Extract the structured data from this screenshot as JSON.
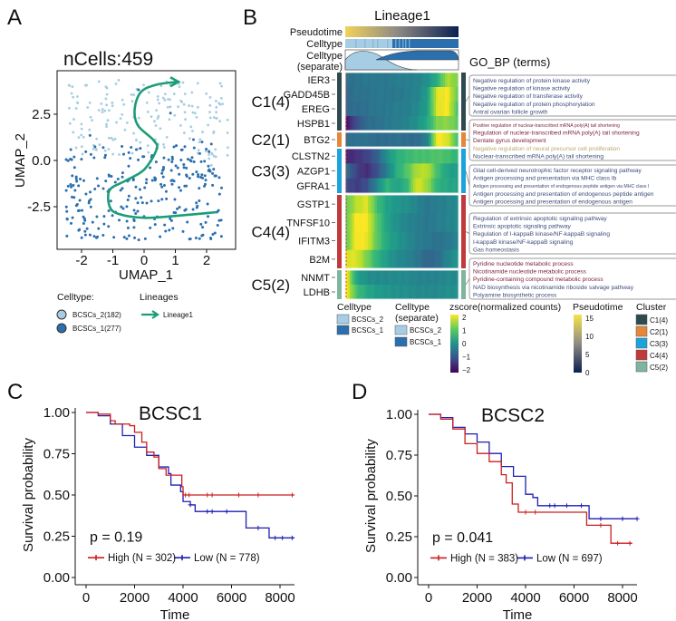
{
  "panels": {
    "a": "A",
    "b": "B",
    "c": "C",
    "d": "D"
  },
  "chart_data": [
    {
      "type": "scatter",
      "panel": "A",
      "title": "nCells:459",
      "xlabel": "UMAP_1",
      "ylabel": "UMAP_2",
      "xticks": [
        "-2",
        "-1",
        "0",
        "1",
        "2"
      ],
      "yticks": [
        "-2.5",
        "0.0",
        "2.5"
      ],
      "xlim": [
        -2.78,
        2.93
      ],
      "ylim": [
        -4.8,
        4.85
      ],
      "legend_title": "Celltype:",
      "series": [
        {
          "name": "BCSCs_2(182)",
          "count": 182,
          "color": "#a6cde3"
        },
        {
          "name": "BCSCs_1(277)",
          "count": 277,
          "color": "#2b6fae"
        }
      ],
      "lineage_legend_title": "Lineages",
      "lineage": {
        "name": "Lineage1",
        "color": "#1b9e77",
        "path": [
          [
            2.3,
            -2.8
          ],
          [
            1.0,
            -3.0
          ],
          [
            0.0,
            -3.1
          ],
          [
            -0.8,
            -2.9
          ],
          [
            -1.1,
            -2.5
          ],
          [
            -1.1,
            -1.6
          ],
          [
            -0.6,
            -1.1
          ],
          [
            0.0,
            -0.5
          ],
          [
            0.4,
            0.6
          ],
          [
            0.3,
            1.1
          ],
          [
            -0.2,
            1.9
          ],
          [
            -0.3,
            2.8
          ],
          [
            -0.1,
            3.7
          ],
          [
            0.4,
            4.1
          ],
          [
            1.1,
            4.25
          ]
        ]
      }
    },
    {
      "type": "heatmap",
      "panel": "B",
      "title": "Lineage1",
      "annotation_rows": [
        "Pseudotime",
        "Celltype",
        "Celltype\n(separate)"
      ],
      "annotation_labels": {
        "pseudotime": "Pseudotime",
        "celltype": "Celltype",
        "separate_1": "Celltype",
        "separate_2": "(separate)"
      },
      "clusters": [
        {
          "label": "C1(4)",
          "color": "#2f4a4e",
          "genes": [
            "IER3",
            "GADD45B",
            "EREG",
            "HSPB1"
          ],
          "values": [
            [
              -0.5,
              -0.5,
              -0.4,
              -0.4,
              -0.4,
              -0.3,
              -0.3,
              -0.2,
              0,
              0.5,
              1.5,
              1.2
            ],
            [
              -0.6,
              -0.5,
              -0.5,
              -0.4,
              -0.4,
              -0.4,
              -0.3,
              -0.2,
              0.2,
              1.8,
              2,
              1
            ],
            [
              -0.6,
              -0.6,
              -0.5,
              -0.4,
              -0.4,
              -0.3,
              -0.3,
              -0.1,
              0.2,
              1.8,
              2,
              0.8
            ],
            [
              -1.8,
              -1,
              -0.6,
              -0.5,
              -0.4,
              -0.3,
              -0.2,
              0,
              0.4,
              1.2,
              1.3,
              1
            ]
          ],
          "go_terms": [
            {
              "text": "Negative regulation of protein kinase activity",
              "color": "#3d4b7a"
            },
            {
              "text": "Negative regulation of kinase activity",
              "color": "#3d4b7a"
            },
            {
              "text": "Negative regulation of transferase activity",
              "color": "#3d4b7a"
            },
            {
              "text": "Negative regulation of protein phosphorylation",
              "color": "#3d4b7a"
            },
            {
              "text": "Antral ovarian follicle growth",
              "color": "#3d4b7a"
            }
          ]
        },
        {
          "label": "C2(1)",
          "color": "#e5873a",
          "genes": [
            "BTG2"
          ],
          "values": [
            [
              -0.5,
              -0.5,
              -0.5,
              -0.6,
              -0.6,
              -0.5,
              -0.6,
              -0.6,
              -0.3,
              2,
              1.8,
              0.8
            ]
          ],
          "go_terms": [
            {
              "text": "Positive regulation of nuclear-transcribed mRNA poly(A) tail shortening",
              "color": "#7a1f3a"
            },
            {
              "text": "Regulation of nuclear-transcribed mRNA poly(A) tail shortening",
              "color": "#7a1f3a"
            },
            {
              "text": "Dentate gyrus development",
              "color": "#7a1f3a"
            },
            {
              "text": "Negative regulation of neural precursor cell proliferation",
              "color": "#b8a96e"
            },
            {
              "text": "Nuclear-transcribed mRNA poly(A) tail shortening",
              "color": "#3d4b7a"
            }
          ]
        },
        {
          "label": "C3(3)",
          "color": "#1ba3dc",
          "genes": [
            "CLSTN2",
            "AZGP1",
            "GFRA1"
          ],
          "values": [
            [
              -1.6,
              -1.4,
              -1.2,
              -0.8,
              0,
              0.5,
              0.7,
              0.8,
              0.8,
              0.9,
              0.8,
              0.6
            ],
            [
              -0.5,
              -1.2,
              -1.5,
              -1.0,
              -0.3,
              0.5,
              0.9,
              1.5,
              1.6,
              0.8,
              0.3,
              0.2
            ],
            [
              -1,
              -1.3,
              -1.0,
              -0.2,
              0.6,
              0.3,
              0.6,
              1.8,
              1.4,
              0.6,
              0.4,
              0.3
            ]
          ],
          "go_terms": [
            {
              "text": "Glial cell-derived neurotrophic factor receptor signaling pathway",
              "color": "#3d4b7a"
            },
            {
              "text": "Antigen processing and presentation via MHC class Ib",
              "color": "#3d4b7a"
            },
            {
              "text": "Antigen processing and presentation of endogenous peptide antigen via MHC class I",
              "color": "#3d4b7a"
            },
            {
              "text": "Antigen processing and presentation of endogenous peptide antigen",
              "color": "#3d4b7a"
            },
            {
              "text": "Antigen processing and presentation of endogenous antigen",
              "color": "#3d4b7a"
            }
          ]
        },
        {
          "label": "C4(4)",
          "color": "#c0393b",
          "genes": [
            "GSTP1",
            "TNFSF10",
            "IFITM3",
            "B2M"
          ],
          "values": [
            [
              1,
              1.6,
              1.8,
              0.8,
              0.3,
              0.1,
              0,
              -0.2,
              -0.4,
              -0.3,
              -0.2,
              -0.1
            ],
            [
              1,
              2,
              2,
              1.0,
              0.3,
              0,
              -0.2,
              -0.3,
              -0.4,
              -0.3,
              -0.2,
              -0.1
            ],
            [
              1,
              2,
              1.9,
              1.0,
              0.4,
              0.1,
              -0.1,
              -0.3,
              -0.4,
              -0.5,
              -0.4,
              -0.2
            ],
            [
              1.8,
              1.8,
              1.2,
              0.6,
              0.2,
              -0.1,
              -0.2,
              -0.4,
              -0.7,
              -0.6,
              -0.2,
              0.1
            ]
          ],
          "go_terms": [
            {
              "text": "Regulation of extrinsic apoptotic signaling pathway",
              "color": "#3d4b7a"
            },
            {
              "text": "Extrinsic apoptotic signaling pathway",
              "color": "#3d4b7a"
            },
            {
              "text": "Regulation of I-kappaB kinase/NF-kappaB signaling",
              "color": "#3d4b7a"
            },
            {
              "text": "I-kappaB kinase/NF-kappaB signaling",
              "color": "#3d4b7a"
            },
            {
              "text": "Gas homeostasis",
              "color": "#3d4b7a"
            }
          ]
        },
        {
          "label": "C5(2)",
          "color": "#7fb59f",
          "genes": [
            "NNMT",
            "LDHB"
          ],
          "values": [
            [
              2,
              0.3,
              0,
              -0.1,
              -0.1,
              -0.1,
              -0.1,
              -0.2,
              -0.2,
              -0.2,
              -0.1,
              -0.1
            ],
            [
              2,
              0.8,
              0.4,
              0.2,
              0.1,
              0,
              0,
              -0.1,
              -0.1,
              -0.1,
              0,
              0
            ]
          ],
          "go_terms": [
            {
              "text": "Pyridine nucleotide metabolic process",
              "color": "#7a1f3a"
            },
            {
              "text": "Nicotinamide nucleotide metabolic process",
              "color": "#7a1f3a"
            },
            {
              "text": "Pyridine-containing compound metabolic process",
              "color": "#7a1f3a"
            },
            {
              "text": "NAD biosynthesis via nicotinamide riboside salvage pathway",
              "color": "#3d4b7a"
            },
            {
              "text": "Polyamine biosynthetic process",
              "color": "#3d4b7a"
            }
          ]
        }
      ],
      "go_title": "GO_BP (terms)",
      "legends": {
        "celltype": {
          "title": "Celltype",
          "items": [
            {
              "label": "BCSCs_2",
              "color": "#a6cde3"
            },
            {
              "label": "BCSCs_1",
              "color": "#2b6fae"
            }
          ]
        },
        "celltype_separate": {
          "title1": "Celltype",
          "title2": "(separate)",
          "items": [
            {
              "label": "BCSCs_2",
              "color": "#a6cde3"
            },
            {
              "label": "BCSCs_1",
              "color": "#2b6fae"
            }
          ]
        },
        "zscore": {
          "title": "zscore(normalized counts)",
          "ticks": [
            "2",
            "1",
            "0",
            "−1",
            "−2"
          ],
          "range": [
            -2,
            2
          ]
        },
        "pseudotime": {
          "title": "Pseudotime",
          "ticks": [
            "15",
            "10",
            "5",
            "0"
          ],
          "range": [
            0,
            16
          ]
        },
        "cluster": {
          "title": "Cluster",
          "items": [
            "C1(4)",
            "C2(1)",
            "C3(3)",
            "C4(4)",
            "C5(2)"
          ]
        }
      }
    },
    {
      "type": "line",
      "subtype": "kaplan-meier",
      "panel": "C",
      "title": "BCSC1",
      "xlabel": "Time",
      "ylabel": "Survival probability",
      "xticks": [
        "0",
        "2000",
        "4000",
        "6000",
        "8000"
      ],
      "yticks": [
        "0.00",
        "0.25",
        "0.50",
        "0.75",
        "1.00"
      ],
      "ylim": [
        0,
        1
      ],
      "xlim": [
        0,
        8600
      ],
      "pvalue": "p = 0.19",
      "series": [
        {
          "name": "High (N = 302)",
          "color": "#cc1f1f",
          "points": [
            [
              0,
              1
            ],
            [
              500,
              0.99
            ],
            [
              1000,
              0.95
            ],
            [
              1200,
              0.93
            ],
            [
              1800,
              0.92
            ],
            [
              2000,
              0.88
            ],
            [
              2300,
              0.82
            ],
            [
              2500,
              0.76
            ],
            [
              2800,
              0.73
            ],
            [
              3000,
              0.66
            ],
            [
              3300,
              0.62
            ],
            [
              3900,
              0.62
            ],
            [
              3950,
              0.55
            ],
            [
              4000,
              0.5
            ],
            [
              8600,
              0.5
            ]
          ],
          "censor": [
            4100,
            4250,
            5000,
            5200,
            6300,
            7100,
            8500
          ]
        },
        {
          "name": "Low (N = 778)",
          "color": "#1f1fb4",
          "points": [
            [
              0,
              1
            ],
            [
              500,
              0.98
            ],
            [
              1000,
              0.93
            ],
            [
              1500,
              0.86
            ],
            [
              2000,
              0.79
            ],
            [
              2500,
              0.74
            ],
            [
              3000,
              0.67
            ],
            [
              3400,
              0.63
            ],
            [
              3500,
              0.56
            ],
            [
              3900,
              0.52
            ],
            [
              4000,
              0.46
            ],
            [
              4300,
              0.44
            ],
            [
              4500,
              0.4
            ],
            [
              6500,
              0.4
            ],
            [
              6600,
              0.3
            ],
            [
              7500,
              0.3
            ],
            [
              7550,
              0.24
            ],
            [
              8600,
              0.24
            ]
          ],
          "censor": [
            4300,
            5000,
            5200,
            5800,
            7100,
            7800,
            8100,
            8500
          ]
        }
      ]
    },
    {
      "type": "line",
      "subtype": "kaplan-meier",
      "panel": "D",
      "title": "BCSC2",
      "xlabel": "Time",
      "ylabel": "Survival probability",
      "xticks": [
        "0",
        "2000",
        "4000",
        "6000",
        "8000"
      ],
      "yticks": [
        "0.00",
        "0.25",
        "0.50",
        "0.75",
        "1.00"
      ],
      "ylim": [
        0,
        1
      ],
      "xlim": [
        0,
        8600
      ],
      "pvalue": "p = 0.041",
      "series": [
        {
          "name": "High (N = 383)",
          "color": "#cc1f1f",
          "points": [
            [
              0,
              1
            ],
            [
              500,
              0.97
            ],
            [
              1000,
              0.91
            ],
            [
              1500,
              0.82
            ],
            [
              2000,
              0.76
            ],
            [
              2500,
              0.71
            ],
            [
              3000,
              0.63
            ],
            [
              3200,
              0.58
            ],
            [
              3400,
              0.58
            ],
            [
              3450,
              0.45
            ],
            [
              3700,
              0.4
            ],
            [
              6500,
              0.4
            ],
            [
              6520,
              0.32
            ],
            [
              7500,
              0.32
            ],
            [
              7520,
              0.21
            ],
            [
              8400,
              0.21
            ]
          ],
          "censor": [
            4000,
            4400,
            7100,
            7800,
            8300
          ]
        },
        {
          "name": "Low (N = 697)",
          "color": "#1f1fb4",
          "points": [
            [
              0,
              1
            ],
            [
              500,
              0.98
            ],
            [
              1000,
              0.92
            ],
            [
              1500,
              0.88
            ],
            [
              2000,
              0.83
            ],
            [
              2500,
              0.76
            ],
            [
              3000,
              0.68
            ],
            [
              3500,
              0.62
            ],
            [
              3800,
              0.62
            ],
            [
              4000,
              0.51
            ],
            [
              4300,
              0.49
            ],
            [
              4500,
              0.44
            ],
            [
              6600,
              0.44
            ],
            [
              6620,
              0.36
            ],
            [
              8600,
              0.36
            ]
          ],
          "censor": [
            5000,
            5200,
            5700,
            6300,
            7100,
            8000,
            8600
          ]
        }
      ]
    }
  ]
}
